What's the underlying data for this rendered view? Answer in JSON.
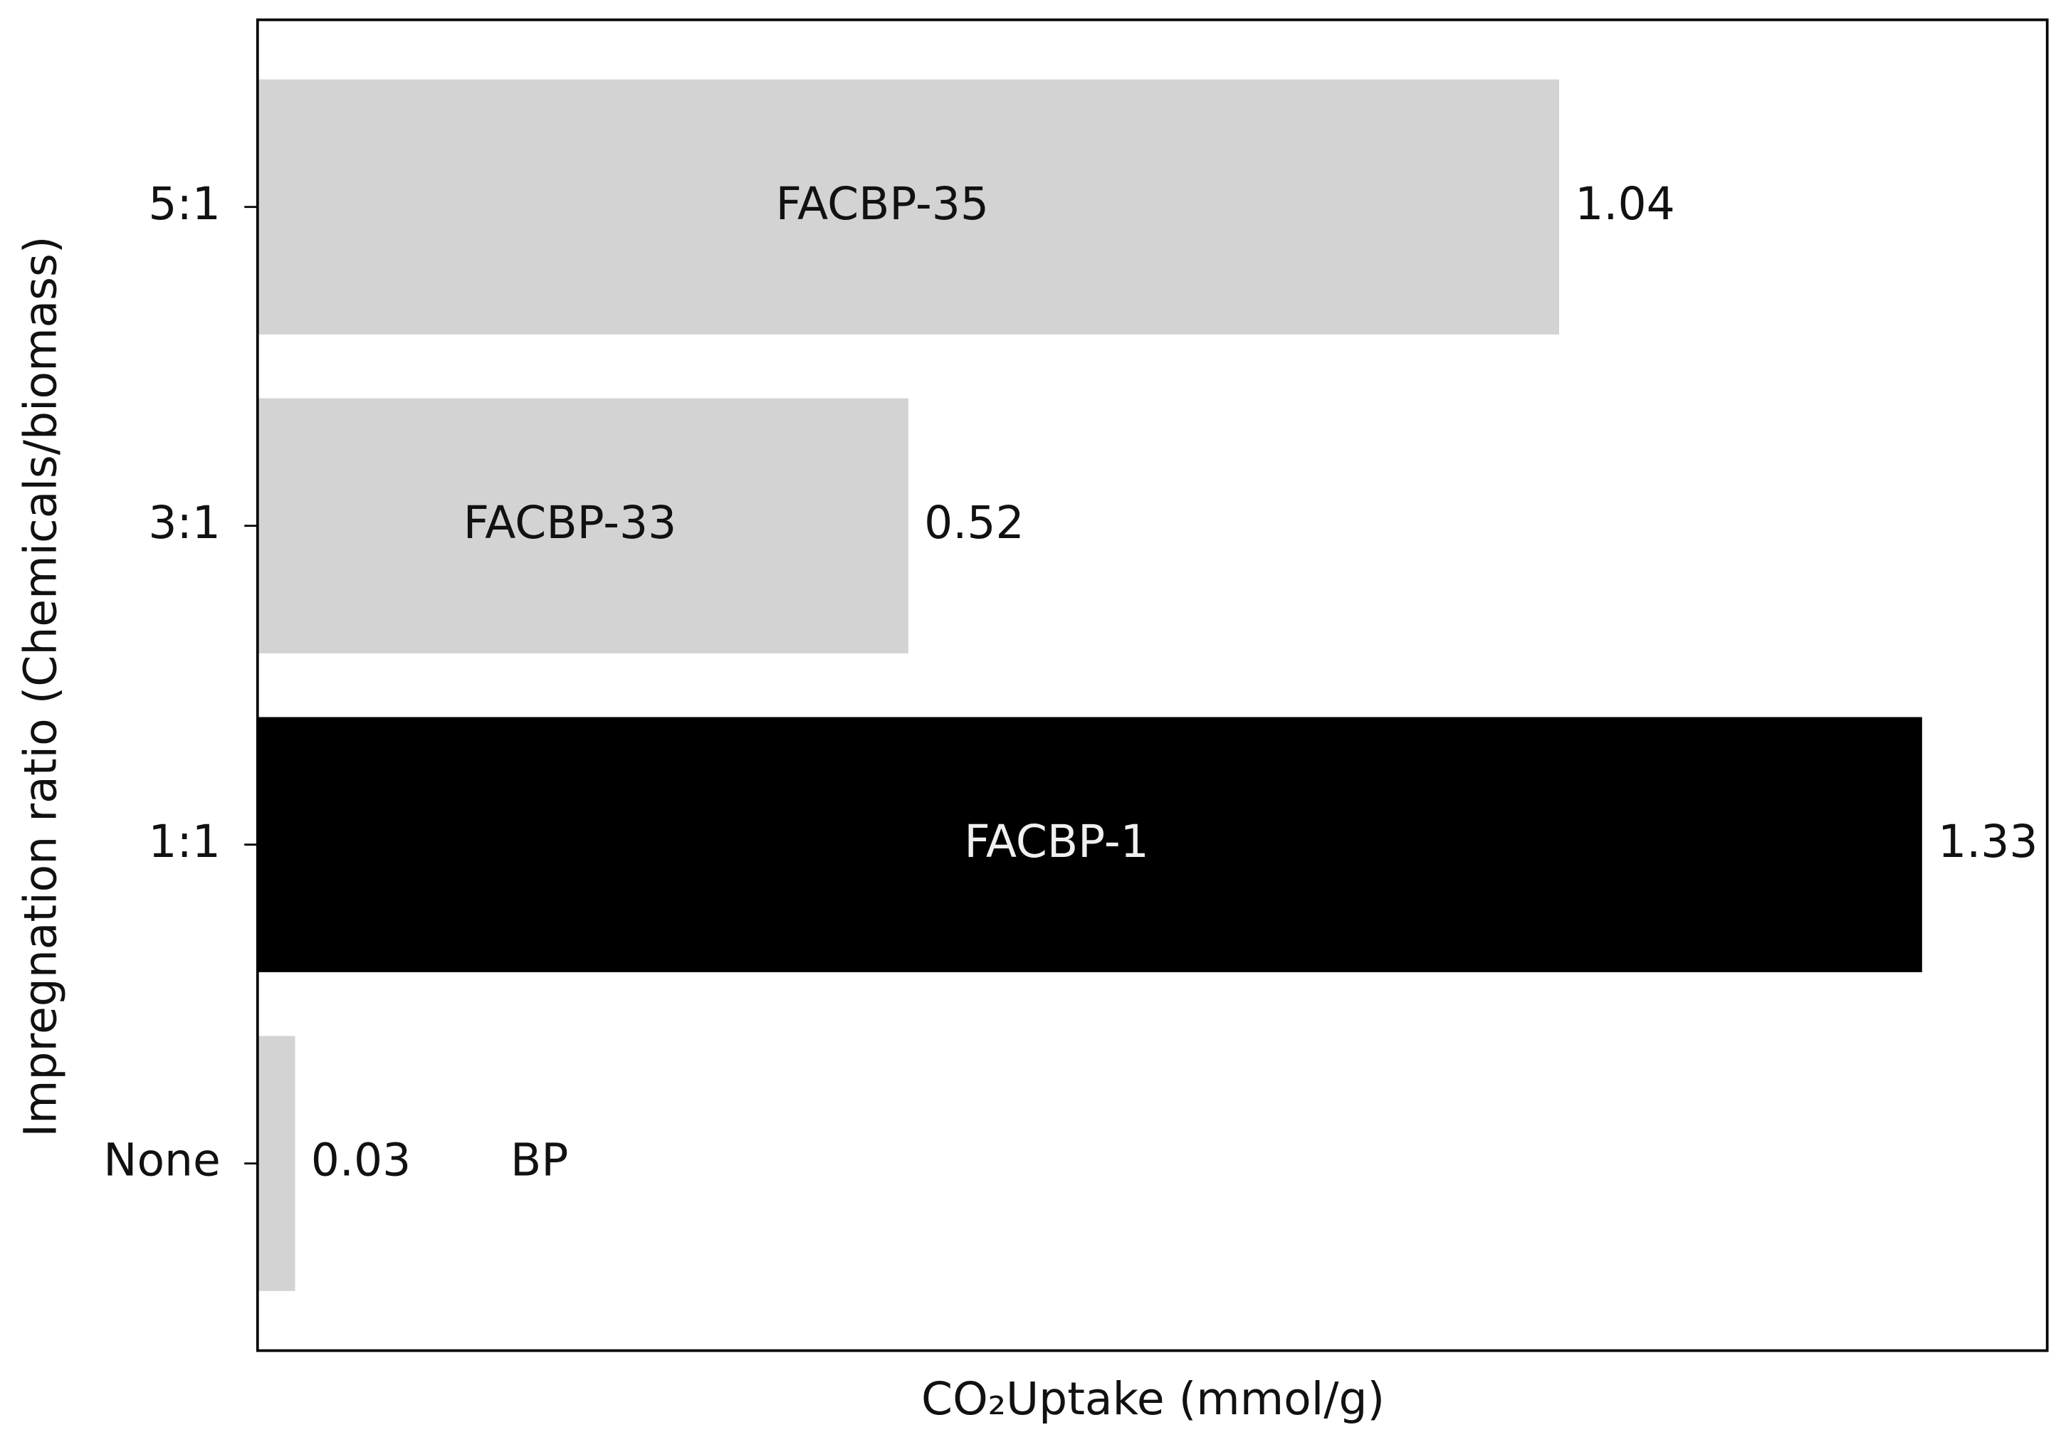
{
  "chart_data": {
    "type": "bar",
    "orientation": "horizontal",
    "x_label": "CO₂Uptake (mmol/g)",
    "y_label": "Impregnation ratio (Chemicals/biomass)",
    "categories": [
      "None",
      "1:1",
      "3:1",
      "5:1"
    ],
    "values": [
      0.03,
      1.33,
      0.52,
      1.04
    ],
    "bar_labels": [
      "BP",
      "FACBP-1",
      "FACBP-33",
      "FACBP-35"
    ],
    "colors": [
      "#d3d3d3",
      "#000000",
      "#d3d3d3",
      "#d3d3d3"
    ],
    "xlim": [
      0,
      1.43
    ]
  }
}
